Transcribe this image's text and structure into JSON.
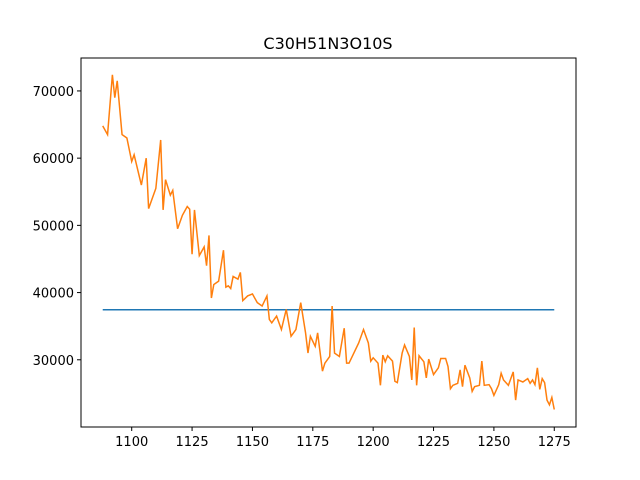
{
  "chart_data": {
    "type": "line",
    "title": "C30H51N3O10S",
    "xlim": [
      1079,
      1284
    ],
    "xticks": [
      1100,
      1125,
      1150,
      1175,
      1200,
      1225,
      1250,
      1275
    ],
    "ylim": [
      20000,
      74900
    ],
    "yticks": [
      30000,
      40000,
      50000,
      60000,
      70000
    ],
    "grid": false,
    "series": [
      {
        "color": "#1f77b4",
        "x": [
          1088,
          1275
        ],
        "values": [
          37450,
          37450
        ]
      },
      {
        "color": "#ff7f0e",
        "x": [
          1088,
          1090,
          1092,
          1093,
          1094,
          1096,
          1098,
          1100,
          1101,
          1104,
          1106,
          1107,
          1108,
          1110,
          1112,
          1113,
          1114,
          1116,
          1117,
          1119,
          1121,
          1123,
          1124,
          1125,
          1126,
          1128,
          1130,
          1131,
          1132,
          1133,
          1134,
          1136,
          1138,
          1139,
          1140,
          1141,
          1142,
          1144,
          1145,
          1146,
          1148,
          1150,
          1152,
          1154,
          1156,
          1157,
          1158,
          1160,
          1162,
          1164,
          1166,
          1168,
          1170,
          1172,
          1173,
          1174,
          1176,
          1177,
          1179,
          1180,
          1182,
          1183,
          1184,
          1186,
          1188,
          1189,
          1190,
          1192,
          1194,
          1196,
          1198,
          1199,
          1200,
          1202,
          1203,
          1204,
          1205,
          1206,
          1208,
          1209,
          1210,
          1212,
          1213,
          1215,
          1216,
          1217,
          1218,
          1219,
          1221,
          1222,
          1223,
          1225,
          1227,
          1228,
          1230,
          1231,
          1232,
          1233,
          1235,
          1236,
          1237,
          1238,
          1240,
          1241,
          1242,
          1244,
          1245,
          1246,
          1248,
          1249,
          1250,
          1252,
          1253,
          1254,
          1256,
          1258,
          1259,
          1260,
          1262,
          1264,
          1265,
          1266,
          1267,
          1268,
          1269,
          1270,
          1271,
          1272,
          1273,
          1274,
          1275
        ],
        "values": [
          64800,
          63500,
          72400,
          69000,
          71500,
          63500,
          63000,
          59500,
          60500,
          56000,
          60000,
          52500,
          53500,
          55500,
          62700,
          52300,
          56800,
          54500,
          55200,
          49500,
          51500,
          52800,
          52400,
          45700,
          52300,
          45500,
          46800,
          44000,
          48500,
          39200,
          41200,
          41700,
          46300,
          40800,
          41000,
          40600,
          42400,
          42000,
          43000,
          38800,
          39500,
          39800,
          38500,
          38000,
          39500,
          36000,
          35500,
          36500,
          34500,
          37500,
          33500,
          34500,
          38500,
          34000,
          31000,
          33500,
          32000,
          34000,
          28300,
          29500,
          30500,
          38000,
          31000,
          30500,
          34700,
          29500,
          29500,
          31000,
          32500,
          34500,
          32500,
          29800,
          30300,
          29500,
          26200,
          30700,
          29700,
          30600,
          29800,
          26800,
          26600,
          31000,
          32200,
          30500,
          27000,
          34800,
          26200,
          30600,
          29700,
          27300,
          30100,
          27800,
          28800,
          30200,
          30200,
          29000,
          25700,
          26200,
          26500,
          28500,
          26000,
          29200,
          27300,
          25300,
          26000,
          26200,
          29800,
          26200,
          26300,
          25700,
          24700,
          26300,
          28000,
          27000,
          26200,
          28200,
          24000,
          27000,
          26700,
          27200,
          26500,
          27000,
          26300,
          28800,
          25600,
          27200,
          26600,
          24000,
          23300,
          24400,
          22600
        ]
      }
    ]
  }
}
